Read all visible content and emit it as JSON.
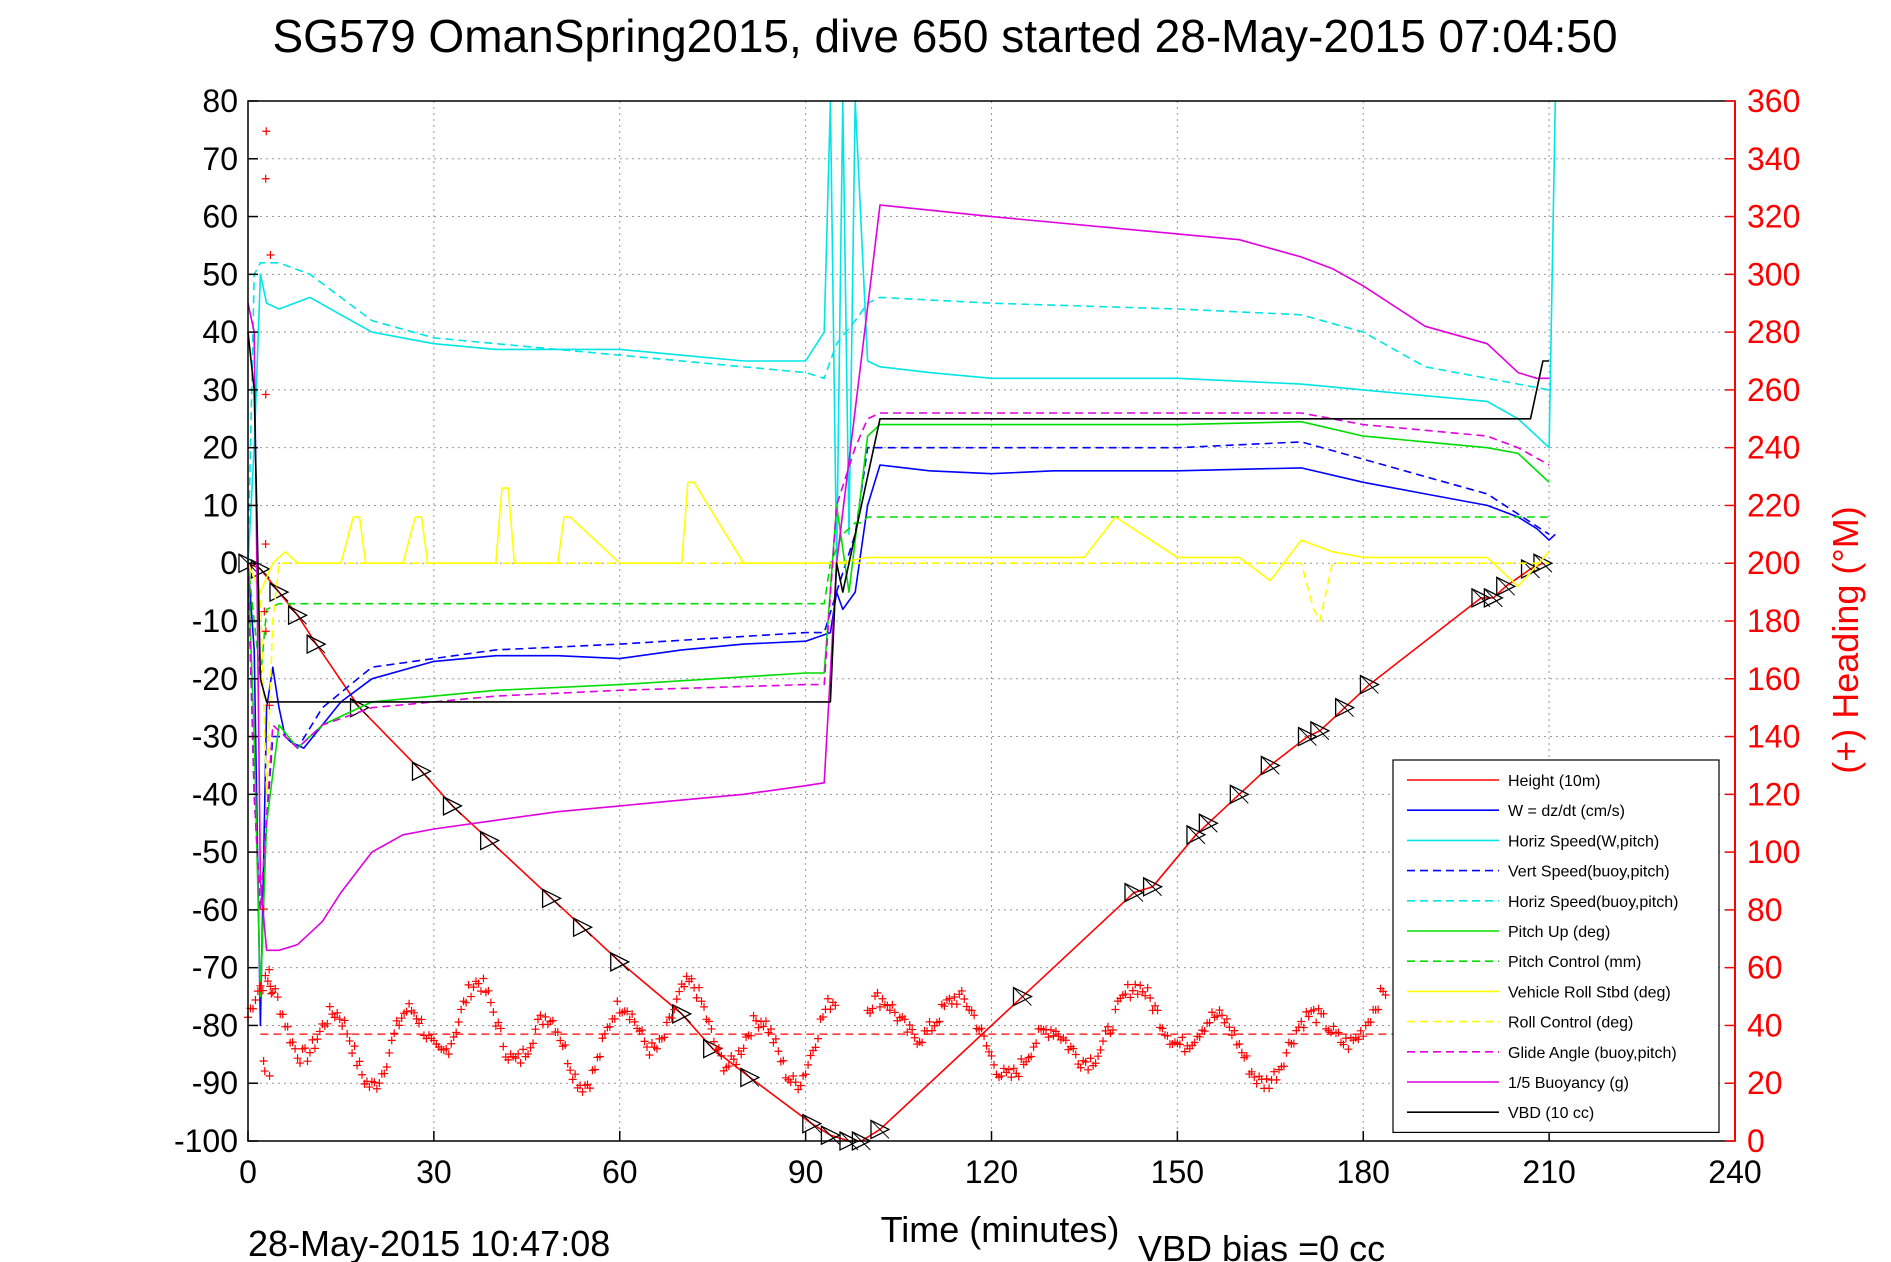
{
  "chart_data": {
    "type": "line",
    "title": "SG579 OmanSpring2015, dive 650 started 28-May-2015 07:04:50",
    "xlabel": "Time (minutes)",
    "ylabel": "",
    "ylabel_right": "(+) Heading (°M)",
    "xlim": [
      0,
      240
    ],
    "ylim": [
      -100,
      80
    ],
    "ylim_right": [
      0,
      360
    ],
    "x_ticks": [
      "0",
      "30",
      "60",
      "90",
      "120",
      "150",
      "180",
      "210",
      "240"
    ],
    "y_ticks": [
      "80",
      "70",
      "60",
      "50",
      "40",
      "30",
      "20",
      "10",
      "0",
      "-10",
      "-20",
      "-30",
      "-40",
      "-50",
      "-60",
      "-70",
      "-80",
      "-90",
      "-100"
    ],
    "y_ticks_right": [
      "360",
      "340",
      "320",
      "300",
      "280",
      "260",
      "240",
      "220",
      "200",
      "180",
      "160",
      "140",
      "120",
      "100",
      "80",
      "60",
      "40",
      "20",
      "0"
    ],
    "grid": true,
    "legend_position": "bottom-right",
    "footer_left": "28-May-2015 10:47:08",
    "footer_right": "VBD bias =0 cc",
    "heading_mean": 37,
    "series": [
      {
        "name": "Height (10m)",
        "color": "#ff0000",
        "style": "solid",
        "marker": "triangle",
        "x": [
          0,
          2,
          5,
          8,
          11,
          18,
          28,
          33,
          39,
          49,
          54,
          60,
          70,
          75,
          81,
          91,
          94,
          97,
          99,
          102,
          125,
          143,
          146,
          153,
          155,
          160,
          165,
          171,
          173,
          177,
          181,
          199,
          201,
          203,
          207,
          209
        ],
        "y": [
          0,
          -1,
          -5,
          -9,
          -14,
          -25,
          -36,
          -42,
          -48,
          -58,
          -63,
          -69,
          -78,
          -84,
          -89,
          -97,
          -99,
          -100,
          -100,
          -98,
          -75,
          -57,
          -56,
          -47,
          -45,
          -40,
          -35,
          -30,
          -29,
          -25,
          -21,
          -6,
          -6,
          -4,
          -1,
          0
        ]
      },
      {
        "name": "W = dz/dt (cm/s)",
        "color": "#0000ff",
        "style": "solid",
        "x": [
          0,
          1,
          2,
          3,
          4,
          5,
          6,
          7,
          9,
          12,
          15,
          20,
          30,
          40,
          50,
          60,
          70,
          80,
          90,
          94,
          95,
          96,
          98,
          100,
          102,
          110,
          120,
          130,
          150,
          170,
          180,
          190,
          200,
          205,
          208,
          210,
          211
        ],
        "y": [
          0,
          -15,
          -80,
          -25,
          -18,
          -25,
          -30,
          -31,
          -32,
          -28,
          -24,
          -20,
          -17,
          -16,
          -16,
          -16.5,
          -15,
          -14,
          -13.5,
          -12,
          -5,
          -8,
          -5,
          10,
          17,
          16,
          15.5,
          16,
          16,
          16.5,
          14,
          12,
          10,
          8,
          6,
          4,
          5
        ]
      },
      {
        "name": "Horiz Speed(W,pitch)",
        "color": "#00e5e5",
        "style": "solid",
        "x": [
          0,
          1,
          2,
          3,
          5,
          10,
          15,
          20,
          30,
          40,
          50,
          60,
          70,
          80,
          90,
          93,
          94,
          95,
          96,
          97,
          98,
          100,
          102,
          110,
          120,
          130,
          150,
          170,
          180,
          190,
          200,
          205,
          208,
          210,
          211
        ],
        "y": [
          0,
          20,
          50,
          45,
          44,
          46,
          43,
          40,
          38,
          37,
          37,
          37,
          36,
          35,
          35,
          40,
          80,
          0,
          80,
          5,
          80,
          35,
          34,
          33,
          32,
          32,
          32,
          31,
          30,
          29,
          28,
          25,
          22,
          20,
          80
        ]
      },
      {
        "name": "Vert Speed(buoy,pitch)",
        "color": "#0000ff",
        "style": "dashed",
        "x": [
          0,
          1,
          2,
          4,
          6,
          8,
          12,
          20,
          40,
          60,
          90,
          93,
          95,
          98,
          100,
          110,
          150,
          170,
          180,
          190,
          200,
          210
        ],
        "y": [
          0,
          -40,
          -60,
          -30,
          -30,
          -32,
          -25,
          -18,
          -15,
          -14,
          -12,
          -12,
          -5,
          5,
          20,
          20,
          20,
          21,
          18,
          15,
          12,
          5
        ]
      },
      {
        "name": "Horiz Speed(buoy,pitch)",
        "color": "#00e5e5",
        "style": "dashed",
        "x": [
          0,
          1,
          2,
          5,
          10,
          20,
          30,
          60,
          90,
          93,
          95,
          98,
          100,
          102,
          120,
          150,
          170,
          180,
          190,
          200,
          210
        ],
        "y": [
          0,
          50,
          52,
          52,
          50,
          42,
          39,
          36,
          33,
          32,
          38,
          42,
          45,
          46,
          45,
          44,
          43,
          40,
          34,
          32,
          30
        ]
      },
      {
        "name": "Pitch Up (deg)",
        "color": "#00dd00",
        "style": "solid",
        "x": [
          0,
          1,
          2,
          3,
          5,
          8,
          12,
          20,
          40,
          60,
          90,
          93,
          95,
          97,
          100,
          102,
          120,
          150,
          170,
          180,
          190,
          200,
          205,
          210
        ],
        "y": [
          0,
          -30,
          -75,
          -45,
          -28,
          -32,
          -28,
          -24,
          -22,
          -21,
          -19,
          -19,
          10,
          -5,
          22,
          24,
          24,
          24,
          24.5,
          22,
          21,
          20,
          19,
          14
        ]
      },
      {
        "name": "Pitch Control (mm)",
        "color": "#00dd00",
        "style": "dashed",
        "x": [
          0,
          1,
          2,
          3,
          5,
          92,
          93,
          94,
          96,
          98,
          99,
          100,
          210
        ],
        "y": [
          0,
          -10,
          -20,
          -8,
          -7,
          -7,
          -7,
          0,
          5,
          7,
          7,
          8,
          8
        ]
      },
      {
        "name": "Vehicle Roll Stbd (deg)",
        "color": "#ffff00",
        "style": "solid",
        "x": [
          0,
          2,
          4,
          6,
          8,
          15,
          17,
          18,
          19,
          25,
          27,
          28,
          29,
          40,
          41,
          42,
          43,
          50,
          51,
          52,
          60,
          70,
          71,
          72,
          80,
          90,
          95,
          100,
          120,
          135,
          140,
          150,
          160,
          165,
          170,
          175,
          180,
          190,
          200,
          205,
          210
        ],
        "y": [
          0,
          -5,
          0,
          2,
          0,
          0,
          8,
          8,
          0,
          0,
          8,
          8,
          0,
          0,
          13,
          13,
          0,
          0,
          8,
          8,
          0,
          0,
          14,
          14,
          0,
          0,
          0,
          1,
          1,
          1,
          8,
          1,
          1,
          -3,
          4,
          2,
          1,
          1,
          1,
          -4,
          2
        ]
      },
      {
        "name": "Roll Control (deg)",
        "color": "#ffff00",
        "style": "dashed",
        "x": [
          0,
          2,
          3,
          4,
          5,
          100,
          160,
          170,
          172,
          173,
          175,
          210
        ],
        "y": [
          0,
          -5,
          -40,
          -10,
          0,
          0,
          0,
          0,
          -8,
          -10,
          0,
          0
        ]
      },
      {
        "name": "Glide Angle (buoy,pitch)",
        "color": "#e000e0",
        "style": "dashed",
        "x": [
          0,
          1,
          2,
          4,
          6,
          8,
          12,
          20,
          40,
          60,
          90,
          93,
          95,
          98,
          100,
          102,
          120,
          150,
          170,
          180,
          190,
          200,
          205,
          210
        ],
        "y": [
          0,
          -40,
          -60,
          -28,
          -30,
          -32,
          -28,
          -25,
          -23,
          -22,
          -21,
          -21,
          10,
          20,
          25,
          26,
          26,
          26,
          26,
          24,
          23,
          22,
          20,
          17
        ]
      },
      {
        "name": "1/5 Buoyancy (g)",
        "color": "#e000e0",
        "style": "solid",
        "x": [
          0,
          1,
          2,
          3,
          5,
          8,
          12,
          15,
          20,
          25,
          30,
          40,
          50,
          60,
          70,
          80,
          90,
          93,
          95,
          102,
          120,
          150,
          160,
          170,
          175,
          180,
          190,
          200,
          205,
          208,
          210
        ],
        "y": [
          45,
          40,
          -55,
          -67,
          -67,
          -66,
          -62,
          -57,
          -50,
          -47,
          -46,
          -44.5,
          -43,
          -42,
          -41,
          -40,
          -38.5,
          -38,
          0,
          62,
          60,
          57,
          56,
          53,
          51,
          48,
          41,
          38,
          33,
          32,
          32
        ]
      },
      {
        "name": "VBD (10 cc)",
        "color": "#000000",
        "style": "solid",
        "x": [
          0,
          1,
          2,
          3,
          4,
          5,
          93,
          94,
          95,
          96,
          98,
          100,
          102,
          200,
          207,
          208,
          209,
          210
        ],
        "y": [
          40,
          30,
          -20,
          -24,
          -24,
          -24,
          -24,
          -24,
          0,
          -5,
          5,
          15,
          25,
          25,
          25,
          30,
          35,
          35
        ]
      }
    ]
  }
}
